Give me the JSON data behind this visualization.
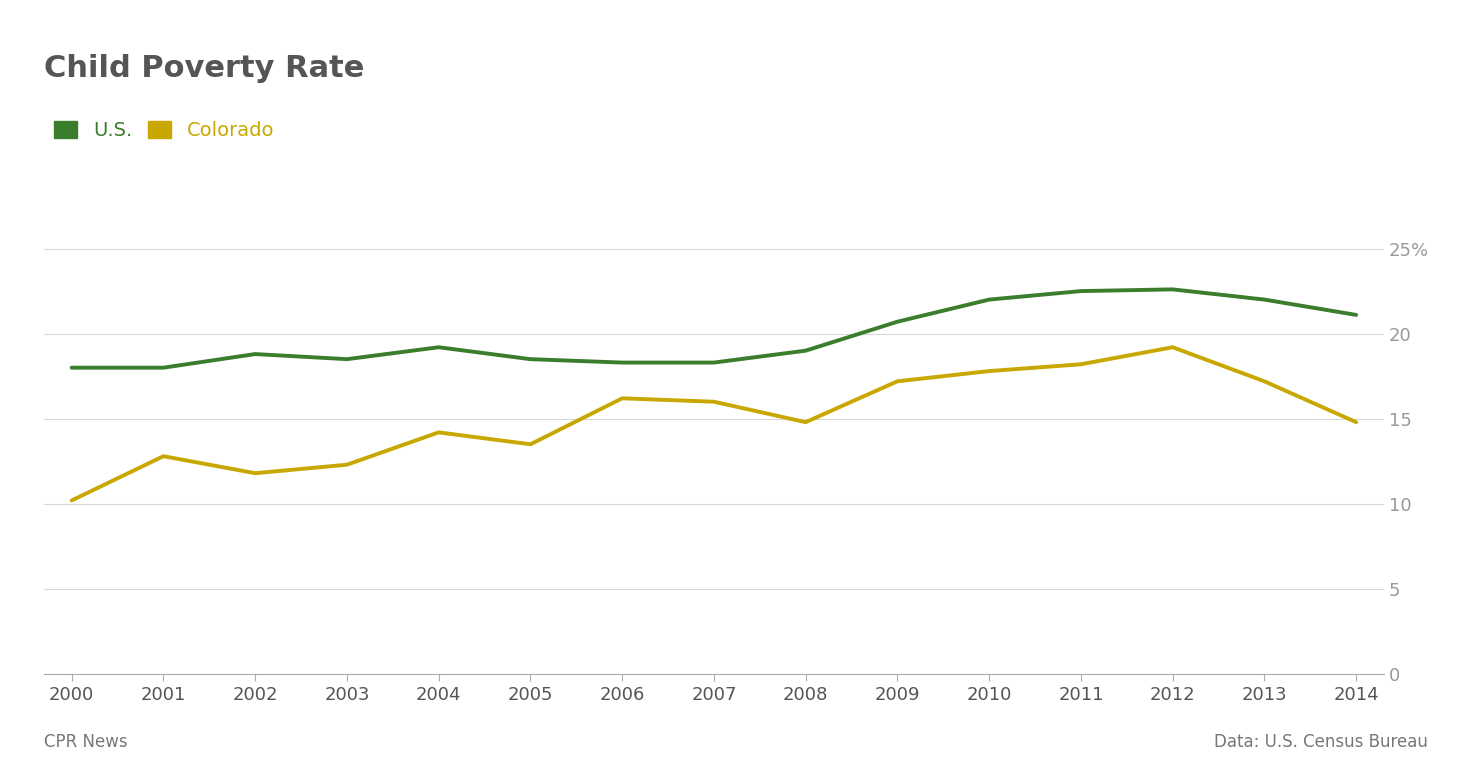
{
  "title": "Child Poverty Rate",
  "years": [
    2000,
    2001,
    2002,
    2003,
    2004,
    2005,
    2006,
    2007,
    2008,
    2009,
    2010,
    2011,
    2012,
    2013,
    2014
  ],
  "us_values": [
    18.0,
    18.0,
    18.8,
    18.5,
    19.2,
    18.5,
    18.3,
    18.3,
    19.0,
    20.7,
    22.0,
    22.5,
    22.6,
    22.0,
    21.1
  ],
  "co_values": [
    10.2,
    12.8,
    11.8,
    12.3,
    14.2,
    13.5,
    16.2,
    16.0,
    14.8,
    17.2,
    17.8,
    18.2,
    19.2,
    17.2,
    14.8
  ],
  "us_color": "#3a7d2c",
  "co_color": "#c8a800",
  "background_color": "#ffffff",
  "grid_color": "#d8d8d8",
  "ylim": [
    0,
    27
  ],
  "yticks": [
    0,
    5,
    10,
    15,
    20,
    25
  ],
  "ytick_labels": [
    "0",
    "5",
    "10",
    "15",
    "20",
    "25%"
  ],
  "footer_left": "CPR News",
  "footer_right": "Data: U.S. Census Bureau",
  "line_width": 2.8,
  "title_fontsize": 22,
  "legend_fontsize": 14,
  "tick_fontsize": 13,
  "footer_fontsize": 12,
  "title_color": "#555555",
  "tick_color_x": "#555555",
  "tick_color_y": "#999999"
}
